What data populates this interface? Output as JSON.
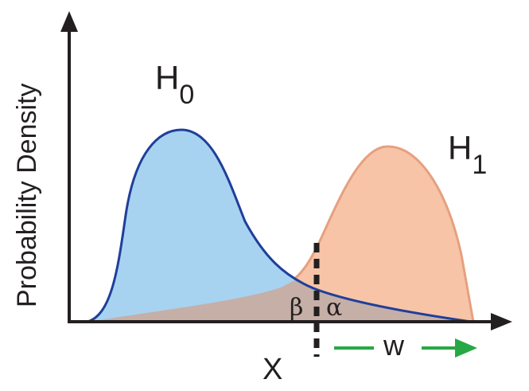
{
  "axes": {
    "y_label": "Probability Density",
    "x_label": "X"
  },
  "hypotheses": {
    "h0": {
      "letter": "H",
      "subscript": "0",
      "fill": "#a7d3f0",
      "stroke": "#1f3f9a"
    },
    "h1": {
      "letter": "H",
      "subscript": "1",
      "fill": "#f7c4a8",
      "stroke": "#e6a07e"
    }
  },
  "regions": {
    "beta": "β",
    "alpha": "α"
  },
  "threshold": {
    "w_label": "w",
    "arrow_color": "#27a844"
  },
  "colors": {
    "axis": "#231f20",
    "overlap": "#c9ab9f",
    "threshold": "#231f20"
  }
}
